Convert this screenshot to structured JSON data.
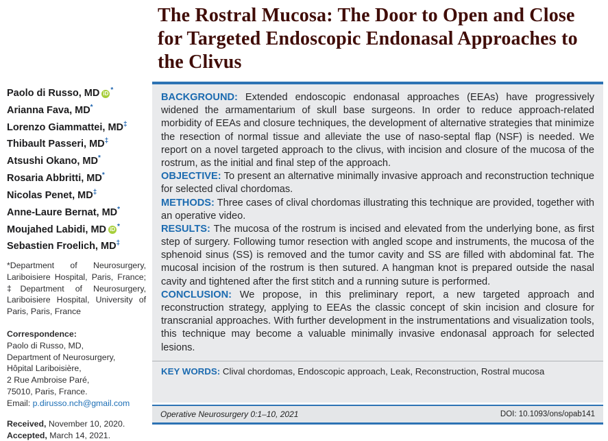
{
  "title_lines": [
    "The Rostral Mucosa: The Door to Open and Close",
    "for Targeted Endoscopic Endonasal Approaches to",
    "the Clivus"
  ],
  "orcid_icon_text": "iD",
  "authors": [
    {
      "name": "Paolo di Russo, MD",
      "marker": "*"
    },
    {
      "name": "Arianna Fava, MD",
      "marker": "*"
    },
    {
      "name": "Lorenzo Giammattei, MD",
      "marker": "‡"
    },
    {
      "name": "Thibault Passeri, MD",
      "marker": "‡"
    },
    {
      "name": "Atsushi Okano, MD",
      "marker": "*"
    },
    {
      "name": "Rosaria Abbritti, MD",
      "marker": "*"
    },
    {
      "name": "Nicolas Penet, MD",
      "marker": "‡"
    },
    {
      "name": "Anne-Laure Bernat, MD",
      "marker": "*"
    },
    {
      "name": "Moujahed Labidi, MD",
      "marker": "*"
    },
    {
      "name": "Sebastien Froelich, MD",
      "marker": "‡"
    }
  ],
  "affiliations": "*Department of Neurosurgery, Lariboisiere Hospital, Paris, France; ‡Department of Neurosurgery, Lariboisiere Hospital, University of Paris, Paris, France",
  "correspondence": {
    "label": "Correspondence:",
    "lines": [
      "Paolo di Russo, MD,",
      "Department of Neurosurgery,",
      "Hôpital Lariboisière,",
      "2 Rue Ambroise Paré,",
      "75010, Paris, France."
    ],
    "email_label": "Email:",
    "email": "p.dirusso.nch@gmail.com"
  },
  "received": {
    "label": "Received,",
    "value": "November 10, 2020."
  },
  "accepted": {
    "label": "Accepted,",
    "value": "March 14, 2021."
  },
  "abstract": {
    "sections": [
      {
        "label": "BACKGROUND:",
        "text": "Extended endoscopic endonasal approaches (EEAs) have progressively widened the armamentarium of skull base surgeons. In order to reduce approach-related morbidity of EEAs and closure techniques, the development of alternative strategies that minimize the resection of normal tissue and alleviate the use of naso-septal flap (NSF) is needed. We report on a novel targeted approach to the clivus, with incision and closure of the mucosa of the rostrum, as the initial and final step of the approach."
      },
      {
        "label": "OBJECTIVE:",
        "text": "To present an alternative minimally invasive approach and reconstruction technique for selected clival chordomas."
      },
      {
        "label": "METHODS:",
        "text": "Three cases of clival chordomas illustrating this technique are provided, together with an operative video."
      },
      {
        "label": "RESULTS:",
        "text": "The mucosa of the rostrum is incised and elevated from the underlying bone, as first step of surgery. Following tumor resection with angled scope and instruments, the mucosa of the sphenoid sinus (SS) is removed and the tumor cavity and SS are filled with abdominal fat. The mucosal incision of the rostrum is then sutured. A hangman knot is prepared outside the nasal cavity and tightened after the first stitch and a running suture is performed."
      },
      {
        "label": "CONCLUSION:",
        "text": "We propose, in this preliminary report, a new targeted approach and reconstruction strategy, applying to EEAs the classic concept of skin incision and closure for transcranial approaches. With further development in the instrumentations and visualization tools, this technique may become a valuable minimally invasive endonasal approach for selected lesions."
      }
    ],
    "keywords_label": "KEY WORDS:",
    "keywords": "Clival chordomas, Endoscopic approach, Leak, Reconstruction, Rostral mucosa"
  },
  "footer": {
    "journal": "Operative Neurosurgery 0:1–10, 2021",
    "doi": "DOI: 10.1093/ons/opab141"
  },
  "colors": {
    "accent_blue": "#1c6bb0",
    "rule_blue": "#2d73b4",
    "box_background": "#e9eaec",
    "title_maroon": "#400d08",
    "orcid_green": "#a6ce39"
  }
}
